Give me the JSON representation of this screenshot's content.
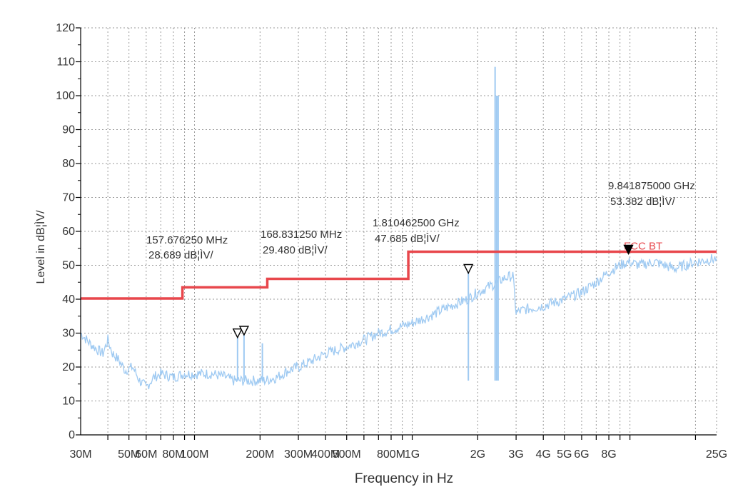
{
  "chart_data": {
    "type": "line",
    "xlabel": "Frequency in Hz",
    "ylabel": "Level in dB¦ÌV/",
    "x_scale": "log",
    "xlim": [
      30000000,
      25000000000
    ],
    "ylim": [
      0,
      120
    ],
    "grid": true,
    "y_ticks": [
      0,
      10,
      20,
      30,
      40,
      50,
      60,
      70,
      80,
      90,
      100,
      110,
      120
    ],
    "x_ticks": [
      {
        "label": "30M",
        "value": 30000000
      },
      {
        "label": "50M",
        "value": 50000000
      },
      {
        "label": "60M",
        "value": 60000000
      },
      {
        "label": "80M",
        "value": 80000000
      },
      {
        "label": "100M",
        "value": 100000000
      },
      {
        "label": "200M",
        "value": 200000000
      },
      {
        "label": "300M",
        "value": 300000000
      },
      {
        "label": "400M",
        "value": 400000000
      },
      {
        "label": "500M",
        "value": 500000000
      },
      {
        "label": "800M",
        "value": 800000000
      },
      {
        "label": "1G",
        "value": 1000000000
      },
      {
        "label": "2G",
        "value": 2000000000
      },
      {
        "label": "3G",
        "value": 3000000000
      },
      {
        "label": "4G",
        "value": 4000000000
      },
      {
        "label": "5G",
        "value": 5000000000
      },
      {
        "label": "6G",
        "value": 6000000000
      },
      {
        "label": "8G",
        "value": 8000000000
      },
      {
        "label": "25G",
        "value": 25000000000
      }
    ],
    "limit_line": {
      "name": "FCC BT",
      "color": "#e8474c",
      "points": [
        [
          30000000,
          40.2
        ],
        [
          88000000,
          40.2
        ],
        [
          88000000,
          43.5
        ],
        [
          216000000,
          43.5
        ],
        [
          216000000,
          46.0
        ],
        [
          960000000,
          46.0
        ],
        [
          960000000,
          54.0
        ],
        [
          25000000000,
          54.0
        ]
      ]
    },
    "series": [
      {
        "color": "#9fcaf2",
        "values": [
          [
            30000000,
            30
          ],
          [
            33000000,
            27
          ],
          [
            36000000,
            25
          ],
          [
            38000000,
            24
          ],
          [
            40000000,
            28
          ],
          [
            42000000,
            24
          ],
          [
            45000000,
            22
          ],
          [
            48000000,
            19
          ],
          [
            52000000,
            20
          ],
          [
            56000000,
            16
          ],
          [
            60000000,
            14
          ],
          [
            65000000,
            17
          ],
          [
            70000000,
            18
          ],
          [
            80000000,
            17
          ],
          [
            90000000,
            18
          ],
          [
            100000000,
            18
          ],
          [
            120000000,
            18
          ],
          [
            140000000,
            17
          ],
          [
            150000000,
            16
          ],
          [
            157676250,
            16
          ],
          [
            170000000,
            16
          ],
          [
            190000000,
            16
          ],
          [
            210000000,
            16
          ],
          [
            240000000,
            17
          ],
          [
            270000000,
            19
          ],
          [
            300000000,
            20
          ],
          [
            350000000,
            22
          ],
          [
            400000000,
            24
          ],
          [
            500000000,
            26
          ],
          [
            600000000,
            28
          ],
          [
            700000000,
            30
          ],
          [
            800000000,
            31
          ],
          [
            1000000000,
            33
          ],
          [
            1200000000,
            35
          ],
          [
            1500000000,
            38
          ],
          [
            1800000000,
            40
          ],
          [
            2000000000,
            42
          ],
          [
            2300000000,
            44
          ],
          [
            2480000000,
            45
          ],
          [
            2600000000,
            46
          ],
          [
            2900000000,
            47
          ],
          [
            3000000000,
            36
          ],
          [
            3300000000,
            37
          ],
          [
            4000000000,
            38
          ],
          [
            5000000000,
            40
          ],
          [
            6000000000,
            42
          ],
          [
            7000000000,
            45
          ],
          [
            8000000000,
            48
          ],
          [
            9000000000,
            50
          ],
          [
            9841875000,
            51
          ],
          [
            11000000000,
            50
          ],
          [
            13000000000,
            51
          ],
          [
            16000000000,
            49
          ],
          [
            20000000000,
            51
          ],
          [
            25000000000,
            52
          ]
        ],
        "spikes": [
          [
            157676250,
            28.7
          ],
          [
            168831250,
            29.5
          ],
          [
            205000000,
            27
          ],
          [
            1810462500,
            47.7
          ],
          [
            2402000000,
            108.5
          ],
          [
            2441000000,
            100
          ],
          [
            2480000000,
            100
          ]
        ]
      }
    ],
    "markers": [
      {
        "freq": 157676250,
        "level": 28.689,
        "label1": "157.676250 MHz",
        "label2": "28.689 dB¦ÌV/",
        "filled": false
      },
      {
        "freq": 168831250,
        "level": 29.48,
        "label1": "168.831250 MHz",
        "label2": "29.480 dB¦ÌV/",
        "filled": false
      },
      {
        "freq": 1810462500,
        "level": 47.685,
        "label1": "1.810462500 GHz",
        "label2": "47.685 dB¦ÌV/",
        "filled": false
      },
      {
        "freq": 9841875000,
        "level": 53.382,
        "label1": "9.841875000 GHz",
        "label2": "53.382 dB¦ÌV/",
        "filled": true
      }
    ]
  }
}
